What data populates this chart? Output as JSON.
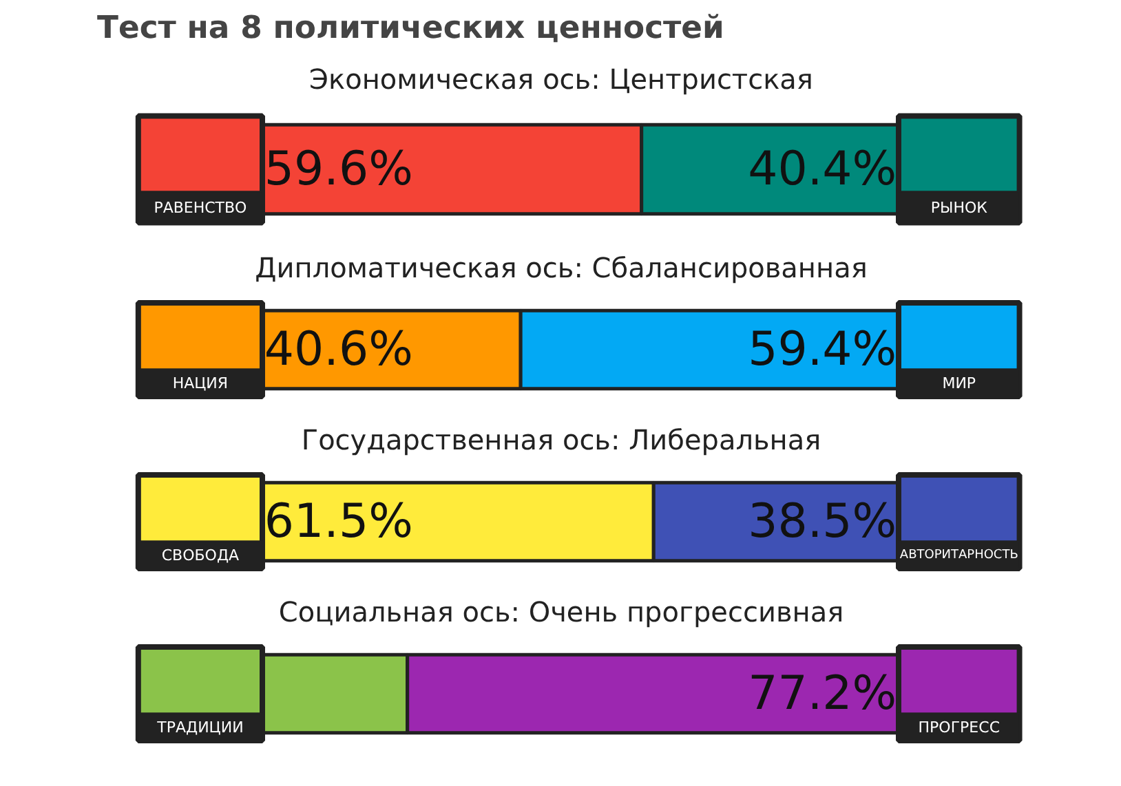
{
  "chart_data": [
    {
      "type": "bar",
      "orientation": "horizontal",
      "stacked": true,
      "title": "Тест на 8 политических ценностей",
      "subtitle": "Экономическая ось: Центристская",
      "categories": [
        null
      ],
      "xlim": [
        0,
        100
      ],
      "tick_labels": false,
      "grid": false,
      "series": [
        {
          "name": "РАВЕНСТВО",
          "color": "#f44336",
          "values": [
            59.6
          ],
          "value_labels": [
            "59.6%"
          ]
        },
        {
          "name": "РЫНОК",
          "color": "#00897b",
          "values": [
            40.4
          ],
          "value_labels": [
            "40.4%"
          ]
        }
      ]
    },
    {
      "type": "bar",
      "orientation": "horizontal",
      "stacked": true,
      "subtitle": "Дипломатическая ось: Сбалансированная",
      "categories": [
        null
      ],
      "xlim": [
        0,
        100
      ],
      "tick_labels": false,
      "grid": false,
      "series": [
        {
          "name": "НАЦИЯ",
          "color": "#ff9800",
          "values": [
            40.6
          ],
          "value_labels": [
            "40.6%"
          ]
        },
        {
          "name": "МИР",
          "color": "#03a9f4",
          "values": [
            59.4
          ],
          "value_labels": [
            "59.4%"
          ]
        }
      ]
    },
    {
      "type": "bar",
      "orientation": "horizontal",
      "stacked": true,
      "subtitle": "Государственная ось: Либеральная",
      "categories": [
        null
      ],
      "xlim": [
        0,
        100
      ],
      "tick_labels": false,
      "grid": false,
      "series": [
        {
          "name": "СВОБОДА",
          "color": "#ffeb3b",
          "values": [
            61.5
          ],
          "value_labels": [
            "61.5%"
          ]
        },
        {
          "name": "АВТОРИТАРНОСТЬ",
          "color": "#3f51b5",
          "values": [
            38.5
          ],
          "value_labels": [
            "38.5%"
          ]
        }
      ]
    },
    {
      "type": "bar",
      "orientation": "horizontal",
      "stacked": true,
      "subtitle": "Социальная ось: Очень прогрессивная",
      "categories": [
        null
      ],
      "xlim": [
        0,
        100
      ],
      "tick_labels": false,
      "grid": false,
      "series": [
        {
          "name": "ТРАДИЦИИ",
          "color": "#8bc34a",
          "values": [
            22.8
          ],
          "value_labels": [
            null
          ]
        },
        {
          "name": "ПРОГРЕСС",
          "color": "#9c27b0",
          "values": [
            77.2
          ],
          "value_labels": [
            "77.2%"
          ]
        }
      ]
    }
  ]
}
